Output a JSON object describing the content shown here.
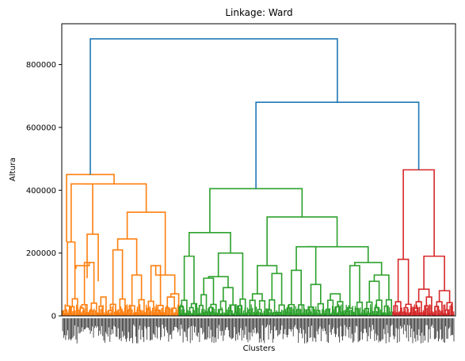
{
  "chart_data": {
    "type": "dendrogram",
    "title": "Linkage: Ward",
    "xlabel": "Clusters",
    "ylabel": "Altura",
    "ylim": [
      0,
      930000
    ],
    "y_ticks": [
      0,
      200000,
      400000,
      600000,
      800000
    ],
    "y_tick_labels": [
      "0",
      "200000",
      "400000",
      "600000",
      "800000"
    ],
    "leaf_labels_legible": false,
    "colors": {
      "root": "#1f77b4",
      "cluster_orange": "#ff7f0e",
      "cluster_green": "#2ca02c",
      "cluster_red": "#d62728"
    },
    "top_links": [
      {
        "height": 882000,
        "color": "root",
        "joins": [
          "orange",
          "green+red"
        ]
      },
      {
        "height": 680000,
        "color": "root",
        "joins": [
          "green",
          "red"
        ]
      }
    ],
    "clusters": [
      {
        "name": "orange",
        "merge_height": 450000,
        "sub_merges": [
          420000,
          330000,
          260000,
          245000,
          235000,
          210000,
          170000,
          160000
        ]
      },
      {
        "name": "green",
        "merge_height": 405000,
        "sub_merges": [
          315000,
          265000,
          220000,
          200000,
          160000,
          145000,
          135000,
          125000
        ]
      },
      {
        "name": "red",
        "merge_height": 465000,
        "sub_merges": [
          190000,
          180000,
          85000,
          80000,
          60000
        ]
      }
    ]
  }
}
